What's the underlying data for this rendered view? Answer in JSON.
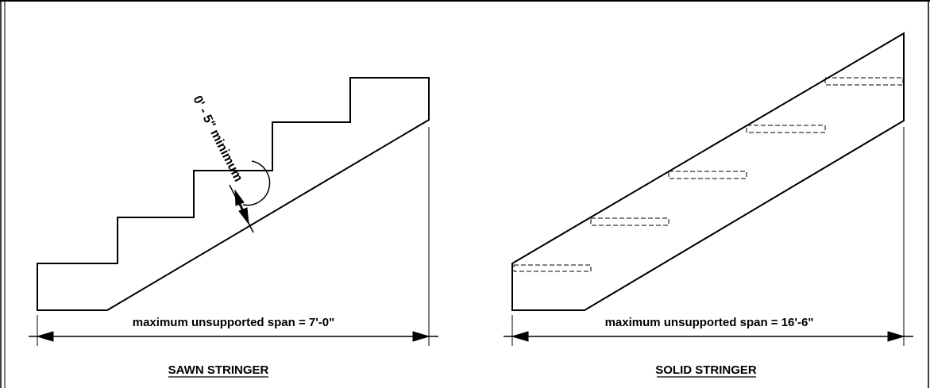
{
  "sawn": {
    "title": "SAWN STRINGER",
    "span_label": "maximum unsupported span = 7'-0\"",
    "min_label": "0' - 5\" minimum"
  },
  "solid": {
    "title": "SOLID STRINGER",
    "span_label": "maximum unsupported span = 16'-6\""
  }
}
